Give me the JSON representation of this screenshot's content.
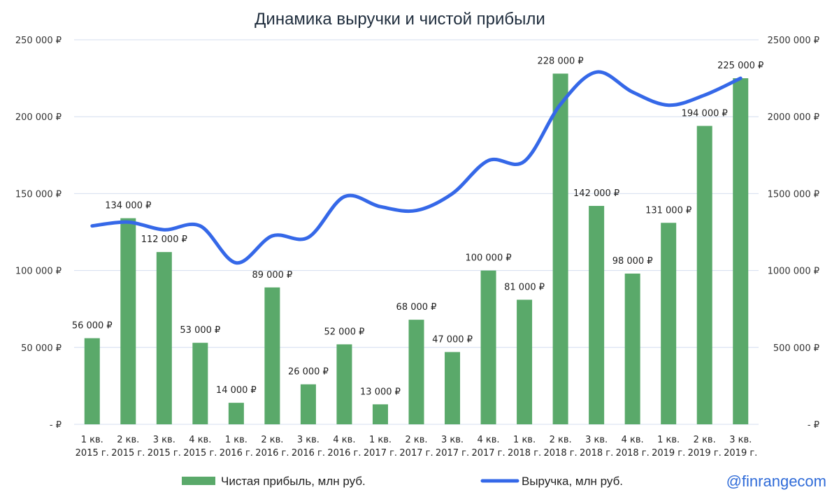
{
  "chart_data": {
    "type": "bar",
    "title": "Динамика выручки и чистой прибыли",
    "categories": [
      [
        "1 кв.",
        "2015 г."
      ],
      [
        "2 кв.",
        "2015 г."
      ],
      [
        "3 кв.",
        "2015 г."
      ],
      [
        "4 кв.",
        "2015 г."
      ],
      [
        "1 кв.",
        "2016 г."
      ],
      [
        "2 кв.",
        "2016 г."
      ],
      [
        "3 кв.",
        "2016 г."
      ],
      [
        "4 кв.",
        "2016 г."
      ],
      [
        "1 кв.",
        "2017 г."
      ],
      [
        "2 кв.",
        "2017 г."
      ],
      [
        "3 кв.",
        "2017 г."
      ],
      [
        "4 кв.",
        "2017 г."
      ],
      [
        "1 кв.",
        "2018 г."
      ],
      [
        "2 кв.",
        "2018 г."
      ],
      [
        "3 кв.",
        "2018 г."
      ],
      [
        "4 кв.",
        "2018 г."
      ],
      [
        "1 кв.",
        "2019 г."
      ],
      [
        "2 кв.",
        "2019 г."
      ],
      [
        "3 кв.",
        "2019 г."
      ]
    ],
    "series": [
      {
        "name": "Чистая прибыль, млн руб.",
        "type": "bar",
        "axis": "left",
        "color": "#5aa96a",
        "values": [
          56000,
          134000,
          112000,
          53000,
          14000,
          89000,
          26000,
          52000,
          13000,
          68000,
          47000,
          100000,
          81000,
          228000,
          142000,
          98000,
          131000,
          194000,
          225000
        ],
        "labels": [
          "56 000 ₽",
          "134 000 ₽",
          "112 000 ₽",
          "53 000 ₽",
          "14 000 ₽",
          "89 000 ₽",
          "26 000 ₽",
          "52 000 ₽",
          "13 000 ₽",
          "68 000 ₽",
          "47 000 ₽",
          "100 000 ₽",
          "81 000 ₽",
          "228 000 ₽",
          "142 000 ₽",
          "98 000 ₽",
          "131 000 ₽",
          "194 000 ₽",
          "225 000 ₽"
        ]
      },
      {
        "name": "Выручка, млн руб.",
        "type": "line",
        "axis": "right",
        "color": "#3568e8",
        "values": [
          1290000,
          1315000,
          1265000,
          1290000,
          1050000,
          1225000,
          1215000,
          1480000,
          1415000,
          1390000,
          1500000,
          1715000,
          1710000,
          2080000,
          2290000,
          2160000,
          2075000,
          2140000,
          2250000
        ]
      }
    ],
    "y_left": {
      "min": 0,
      "max": 250000,
      "ticks": [
        0,
        50000,
        100000,
        150000,
        200000,
        250000
      ],
      "tick_labels": [
        "- ₽",
        "50 000 ₽",
        "100 000 ₽",
        "150 000 ₽",
        "200 000 ₽",
        "250 000 ₽"
      ]
    },
    "y_right": {
      "min": 0,
      "max": 2500000,
      "ticks": [
        0,
        500000,
        1000000,
        1500000,
        2000000,
        2500000
      ],
      "tick_labels": [
        "- ₽",
        "500 000 ₽",
        "1000 000 ₽",
        "1500 000 ₽",
        "2000 000 ₽",
        "2500 000 ₽"
      ]
    },
    "grid": true,
    "legend_position": "bottom"
  },
  "watermark": "@finrangecom"
}
